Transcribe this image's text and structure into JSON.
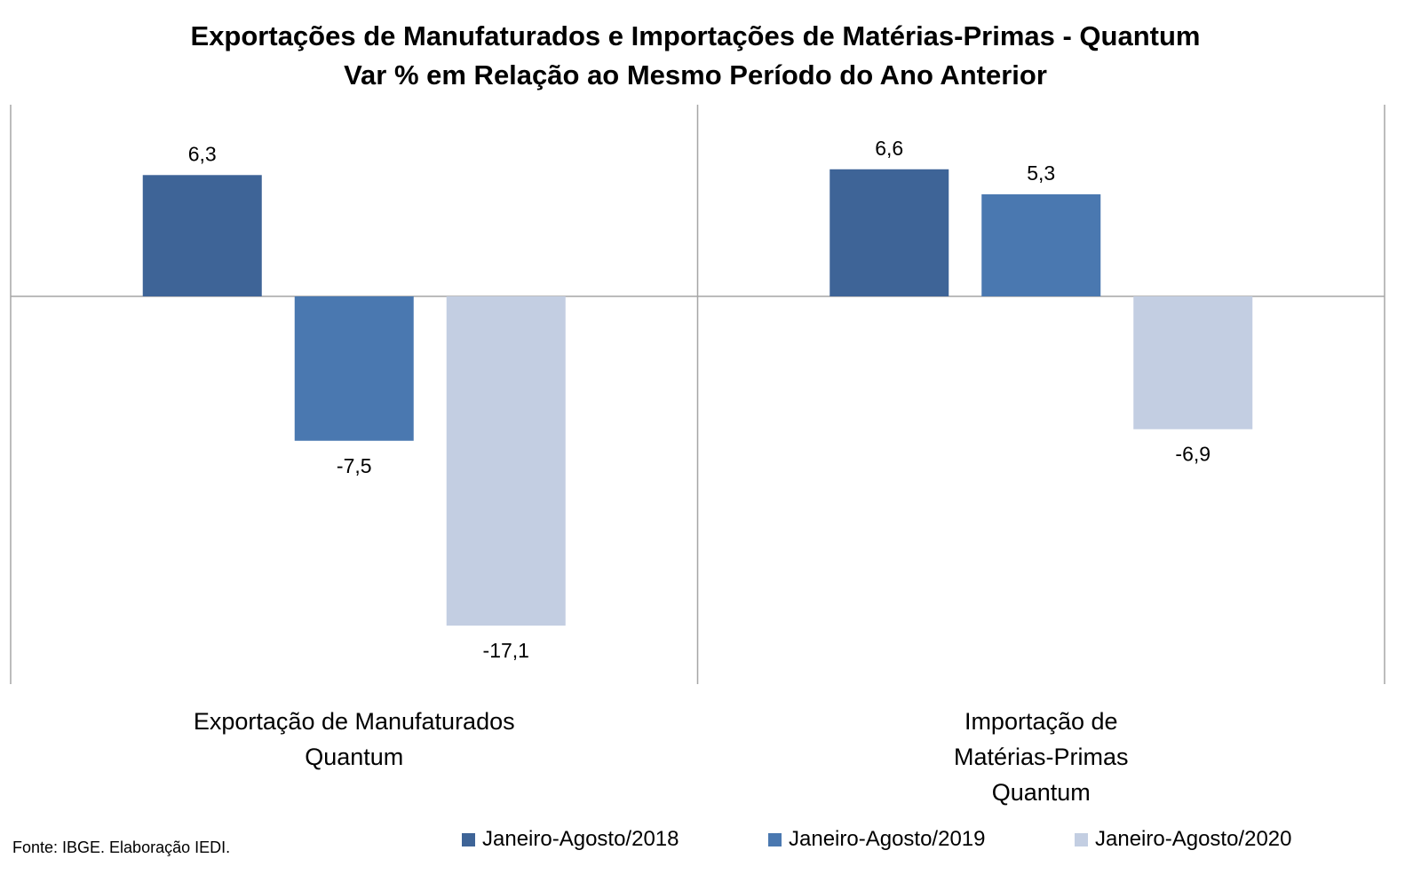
{
  "chart_data": {
    "type": "bar",
    "title": "Exportações de Manufaturados e Importações de Matérias-Primas - Quantum",
    "subtitle": "Var % em Relação ao Mesmo Período do Ano Anterior",
    "categories": [
      [
        "Exportação de Manufaturados",
        "Quantum"
      ],
      [
        "Importação de",
        "Matérias-Primas",
        "Quantum"
      ]
    ],
    "series": [
      {
        "name": "Janeiro-Agosto/2018",
        "color": "#3E6497",
        "values": [
          6.3,
          6.6
        ],
        "labels": [
          "6,3",
          "6,6"
        ]
      },
      {
        "name": "Janeiro-Agosto/2019",
        "color": "#4A78B0",
        "values": [
          -7.5,
          5.3
        ],
        "labels": [
          "-7,5",
          "5,3"
        ]
      },
      {
        "name": "Janeiro-Agosto/2020",
        "color": "#C3CEE2",
        "values": [
          -17.1,
          -6.9
        ],
        "labels": [
          "-17,1",
          "-6,9"
        ]
      }
    ],
    "legend_position": "bottom",
    "grid": false,
    "source": "Fonte: IBGE. Elaboração IEDI."
  }
}
